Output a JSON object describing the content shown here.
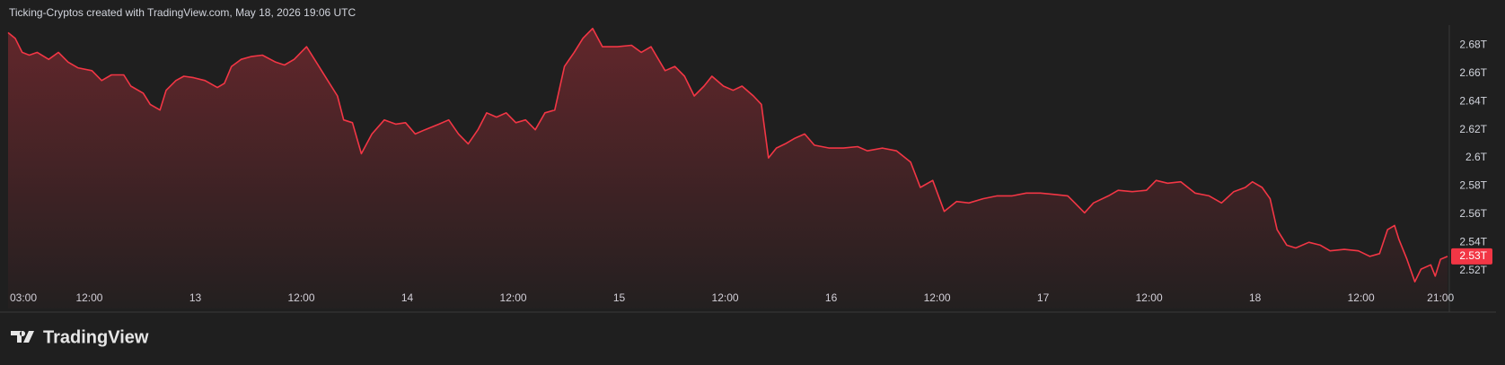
{
  "header": "Ticking-Cryptos created with TradingView.com, May 18, 2026 19:06 UTC",
  "footer": "TradingView",
  "chart_data": {
    "type": "area",
    "color": "#f23645",
    "x": [
      2.8,
      3.6,
      4.4,
      5.2,
      6.1,
      7.4,
      8.5,
      9.6,
      10.7,
      12.3,
      13.4,
      14.5,
      15.9,
      16.7,
      18.1,
      18.9,
      20.0,
      20.7,
      21.8,
      22.7,
      23.8,
      25.1,
      26.5,
      27.3,
      28.1,
      29.2,
      30.3,
      31.6,
      33.1,
      34.1,
      35.2,
      36.6,
      37.7,
      39.0,
      40.1,
      40.8,
      41.8,
      42.8,
      44.0,
      45.4,
      46.7,
      47.8,
      48.9,
      50.0,
      51.6,
      52.7,
      53.8,
      54.9,
      56.0,
      57.0,
      58.1,
      59.2,
      60.3,
      61.4,
      62.5,
      63.6,
      64.7,
      65.8,
      66.9,
      67.9,
      69.0,
      70.1,
      71.8,
      73.4,
      74.5,
      75.6,
      77.2,
      78.3,
      79.4,
      80.5,
      81.6,
      82.5,
      83.8,
      84.9,
      85.9,
      87.2,
      88.1,
      88.9,
      89.8,
      90.8,
      91.9,
      93.0,
      94.1,
      95.8,
      97.4,
      99.0,
      100.1,
      101.8,
      103.4,
      105.0,
      106.1,
      107.5,
      108.8,
      110.2,
      111.6,
      113.2,
      114.8,
      116.5,
      118.1,
      119.7,
      121.4,
      122.8,
      123.6,
      124.7,
      125.7,
      127.4,
      128.5,
      130.1,
      131.7,
      132.8,
      134.1,
      135.6,
      137.2,
      138.8,
      140.2,
      141.6,
      142.9,
      143.7,
      144.8,
      145.7,
      146.5,
      147.6,
      148.6,
      150.1,
      151.4,
      152.5,
      154.1,
      155.7,
      157.0,
      158.1,
      159.0,
      159.8,
      160.3,
      161.2,
      162.1,
      162.8,
      163.9,
      164.4,
      165.0,
      165.8
    ],
    "values": [
      2.689,
      2.685,
      2.675,
      2.673,
      2.675,
      2.67,
      2.675,
      2.668,
      2.664,
      2.662,
      2.655,
      2.659,
      2.659,
      2.651,
      2.646,
      2.638,
      2.634,
      2.648,
      2.655,
      2.658,
      2.657,
      2.655,
      2.65,
      2.653,
      2.665,
      2.67,
      2.672,
      2.673,
      2.668,
      2.666,
      2.67,
      2.679,
      2.668,
      2.655,
      2.644,
      2.627,
      2.625,
      2.603,
      2.617,
      2.627,
      2.624,
      2.625,
      2.617,
      2.62,
      2.624,
      2.627,
      2.617,
      2.61,
      2.62,
      2.632,
      2.629,
      2.632,
      2.625,
      2.627,
      2.62,
      2.632,
      2.634,
      2.665,
      2.675,
      2.685,
      2.692,
      2.679,
      2.679,
      2.68,
      2.675,
      2.679,
      2.662,
      2.665,
      2.658,
      2.644,
      2.651,
      2.658,
      2.651,
      2.648,
      2.651,
      2.644,
      2.638,
      2.6,
      2.607,
      2.61,
      2.614,
      2.617,
      2.609,
      2.607,
      2.607,
      2.608,
      2.605,
      2.607,
      2.605,
      2.597,
      2.579,
      2.584,
      2.562,
      2.569,
      2.568,
      2.571,
      2.573,
      2.573,
      2.575,
      2.575,
      2.574,
      2.573,
      2.568,
      2.561,
      2.568,
      2.573,
      2.577,
      2.576,
      2.577,
      2.584,
      2.582,
      2.583,
      2.575,
      2.573,
      2.568,
      2.576,
      2.579,
      2.583,
      2.579,
      2.571,
      2.549,
      2.538,
      2.536,
      2.54,
      2.538,
      2.534,
      2.535,
      2.534,
      2.53,
      2.532,
      2.549,
      2.552,
      2.542,
      2.528,
      2.512,
      2.521,
      2.524,
      2.516,
      2.528,
      2.53
    ],
    "xlim": [
      2.8,
      166
    ],
    "ylim": [
      2.493,
      2.709
    ],
    "xticks": [
      {
        "value": 3,
        "label": "03:00"
      },
      {
        "value": 12,
        "label": "12:00"
      },
      {
        "value": 24,
        "label": "13"
      },
      {
        "value": 36,
        "label": "12:00"
      },
      {
        "value": 48,
        "label": "14"
      },
      {
        "value": 60,
        "label": "12:00"
      },
      {
        "value": 72,
        "label": "15"
      },
      {
        "value": 84,
        "label": "12:00"
      },
      {
        "value": 96,
        "label": "16"
      },
      {
        "value": 108,
        "label": "12:00"
      },
      {
        "value": 120,
        "label": "17"
      },
      {
        "value": 132,
        "label": "12:00"
      },
      {
        "value": 144,
        "label": "18"
      },
      {
        "value": 156,
        "label": "12:00"
      },
      {
        "value": 165,
        "label": "21:00"
      }
    ],
    "yticks": [
      {
        "value": 2.52,
        "label": "2.52T"
      },
      {
        "value": 2.54,
        "label": "2.54T"
      },
      {
        "value": 2.56,
        "label": "2.56T"
      },
      {
        "value": 2.58,
        "label": "2.58T"
      },
      {
        "value": 2.6,
        "label": "2.6T"
      },
      {
        "value": 2.62,
        "label": "2.62T"
      },
      {
        "value": 2.64,
        "label": "2.64T"
      },
      {
        "value": 2.66,
        "label": "2.66T"
      },
      {
        "value": 2.68,
        "label": "2.68T"
      }
    ],
    "price_label": {
      "value": 2.53,
      "label": "2.53T"
    }
  }
}
